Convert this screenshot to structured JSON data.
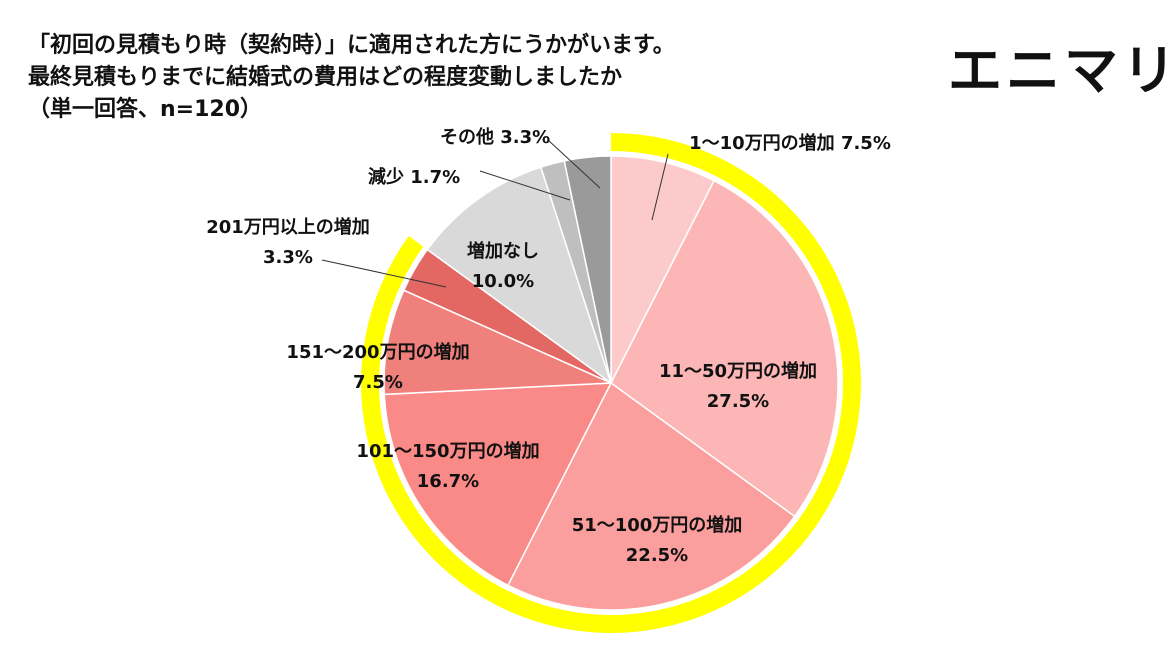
{
  "title_lines": [
    "「初回の見積もり時（契約時）」に適用された方にうかがいます。",
    "最終見積もりまでに結婚式の費用はどの程度変動しましたか",
    "（単一回答、n=120）"
  ],
  "brand": "エニマリ",
  "chart_data": {
    "type": "pie",
    "slices": [
      {
        "label": "1〜10万円の増加",
        "value": 7.5,
        "pct": "7.5%",
        "color": "#fccaca",
        "highlight": true
      },
      {
        "label": "11〜50万円の増加",
        "value": 27.5,
        "pct": "27.5%",
        "color": "#fcb6b6",
        "highlight": true
      },
      {
        "label": "51〜100万円の増加",
        "value": 22.5,
        "pct": "22.5%",
        "color": "#fb9e9e",
        "highlight": true
      },
      {
        "label": "101〜150万円の増加",
        "value": 16.7,
        "pct": "16.7%",
        "color": "#f98a87",
        "highlight": true
      },
      {
        "label": "151〜200万円の増加",
        "value": 7.5,
        "pct": "7.5%",
        "color": "#f0807b",
        "highlight": true
      },
      {
        "label": "201万円以上の増加",
        "value": 3.3,
        "pct": "3.3%",
        "color": "#e36864",
        "highlight": true
      },
      {
        "label": "増加なし",
        "value": 10.0,
        "pct": "10.0%",
        "color": "#d9d9d9",
        "highlight": false
      },
      {
        "label": "減少",
        "value": 1.7,
        "pct": "1.7%",
        "color": "#bfbfbf",
        "highlight": false
      },
      {
        "label": "その他",
        "value": 3.3,
        "pct": "3.3%",
        "color": "#9a9a9a",
        "highlight": false
      }
    ],
    "start_angle_deg": 0,
    "direction": "clockwise",
    "highlight_ring_color": "#ffff00"
  }
}
